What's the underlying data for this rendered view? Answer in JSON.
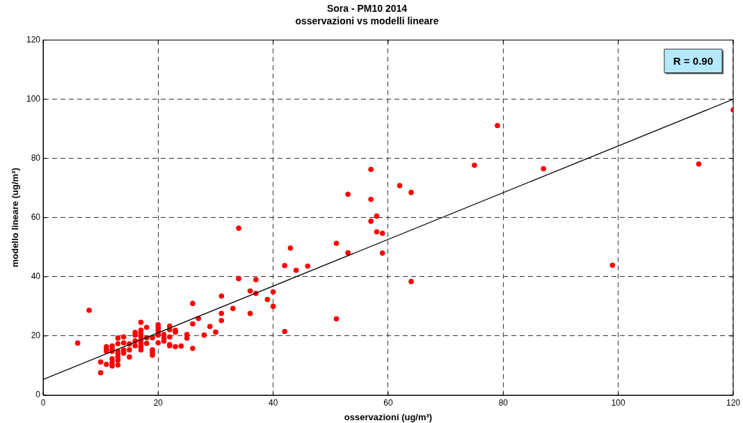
{
  "chart_data": {
    "type": "scatter",
    "title": "Sora - PM10 2014",
    "subtitle": "osservazioni vs modelli lineare",
    "xlabel": "osservazioni (ug/m³)",
    "ylabel": "modello lineare (ug/m³)",
    "annotations": [
      "R = 0.90"
    ],
    "xlim": [
      0,
      120
    ],
    "ylim": [
      0,
      120
    ],
    "xticks": [
      0,
      20,
      40,
      60,
      80,
      100,
      120
    ],
    "yticks": [
      0,
      20,
      40,
      60,
      80,
      100,
      120
    ],
    "grid": true,
    "series": [
      {
        "color": "#ff0000",
        "marker": "circle",
        "x": [
          6,
          8,
          10,
          10,
          11,
          11,
          11,
          11,
          12,
          12,
          12,
          12,
          12,
          12,
          13,
          13,
          13,
          13,
          13,
          13,
          13,
          14,
          14,
          14,
          14,
          15,
          15,
          15,
          16,
          16,
          16,
          16,
          17,
          17,
          17,
          17,
          17,
          17,
          17,
          17,
          18,
          18,
          18,
          19,
          19,
          19,
          19,
          20,
          20,
          20,
          20,
          20,
          20,
          21,
          21,
          21,
          22,
          22,
          22,
          22,
          22,
          23,
          23,
          23,
          24,
          25,
          25,
          26,
          26,
          26,
          27,
          28,
          29,
          30,
          31,
          31,
          31,
          33,
          34,
          34,
          36,
          36,
          37,
          37,
          39,
          40,
          40,
          42,
          42,
          43,
          44,
          46,
          51,
          51,
          53,
          53,
          57,
          57,
          57,
          58,
          58,
          59,
          59,
          62,
          64,
          64,
          75,
          79,
          87,
          99,
          114,
          120
        ],
        "values": [
          17.6,
          28.7,
          11.2,
          7.6,
          16.4,
          15.6,
          14.8,
          10.4,
          16.6,
          15.6,
          14.8,
          12.3,
          11.1,
          9.9,
          19.3,
          17.4,
          14.8,
          14.0,
          13.0,
          11.8,
          10.2,
          19.7,
          17.7,
          15.2,
          14.2,
          17.3,
          15.3,
          12.9,
          21.2,
          20.3,
          18.3,
          16.7,
          24.6,
          22.0,
          21.0,
          19.9,
          18.7,
          17.5,
          16.4,
          15.3,
          22.9,
          19.4,
          17.5,
          19.4,
          15.3,
          14.4,
          13.5,
          23.8,
          22.9,
          21.9,
          20.9,
          20.3,
          17.7,
          20.5,
          19.3,
          18.3,
          23.3,
          22.1,
          19.7,
          17.1,
          16.7,
          21.9,
          21.3,
          16.4,
          16.6,
          20.5,
          19.3,
          31.0,
          24.1,
          15.8,
          25.9,
          20.3,
          23.2,
          21.3,
          33.5,
          27.6,
          25.2,
          29.3,
          56.4,
          39.4,
          35.2,
          27.6,
          39.0,
          34.4,
          32.3,
          34.9,
          30.0,
          43.8,
          21.5,
          49.7,
          42.2,
          43.6,
          51.3,
          25.8,
          67.9,
          48.1,
          76.3,
          66.2,
          58.8,
          60.5,
          55.2,
          54.7,
          48.0,
          70.8,
          68.5,
          38.4,
          77.7,
          91.1,
          76.5,
          43.9,
          78.1,
          96.4
        ]
      },
      {
        "type": "line",
        "color": "#000000",
        "marker": "none",
        "x": [
          0,
          120
        ],
        "values": [
          5.3,
          100
        ]
      }
    ]
  }
}
